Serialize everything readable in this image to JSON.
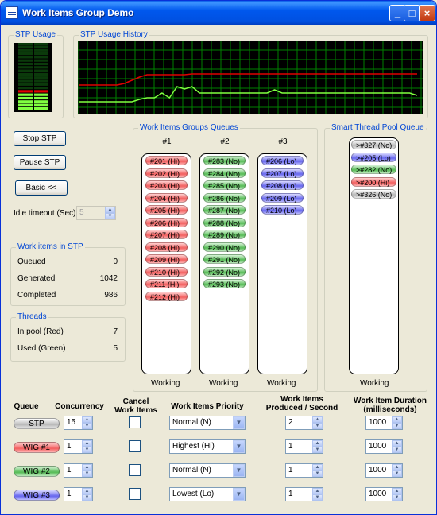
{
  "window": {
    "title": "Work Items Group Demo"
  },
  "colors": {
    "cpu_red": "#e00000",
    "cpu_green": "#80ff40",
    "grid": "#008000",
    "group_title": "#0046d5"
  },
  "stp_usage": {
    "title": "STP Usage",
    "red_segments": 1,
    "green_segments": 5
  },
  "stp_usage_history": {
    "title": "STP Usage History",
    "red_series": [
      30,
      30,
      30,
      30,
      30,
      30,
      32,
      36,
      40,
      43,
      43,
      43,
      43,
      43,
      43,
      44,
      44,
      44,
      44,
      44,
      44,
      44,
      44,
      44,
      44,
      44,
      44,
      44,
      44,
      44,
      44,
      44,
      44,
      44,
      44,
      44,
      44,
      44,
      44,
      44,
      44,
      44,
      44,
      44,
      44,
      44
    ],
    "green_series": [
      9,
      9,
      9,
      9,
      9,
      9,
      9,
      9,
      12,
      14,
      14,
      20,
      14,
      28,
      25,
      28,
      20,
      20,
      20,
      20,
      20,
      20,
      20,
      20,
      20,
      20,
      24,
      20,
      20,
      20,
      20,
      20,
      20,
      20,
      20,
      20,
      20,
      20,
      20,
      20,
      20,
      20,
      20,
      20,
      20,
      17
    ]
  },
  "controls": {
    "stop_stp": "Stop STP",
    "pause_stp": "Pause STP",
    "basic": "Basic <<",
    "idle_timeout_label": "Idle timeout (Sec):",
    "idle_timeout_value": "5"
  },
  "work_items_in_stp": {
    "title": "Work items in STP",
    "rows": [
      {
        "label": "Queued",
        "value": "0"
      },
      {
        "label": "Generated",
        "value": "1042"
      },
      {
        "label": "Completed",
        "value": "986"
      }
    ]
  },
  "threads": {
    "title": "Threads",
    "rows": [
      {
        "label": "In pool (Red)",
        "value": "7"
      },
      {
        "label": "Used (Green)",
        "value": "5"
      }
    ]
  },
  "wig_queues": {
    "title": "Work Items Groups Queues",
    "columns": [
      {
        "header": "#1",
        "status": "Working",
        "items": [
          {
            "text": "#201 (Hi)",
            "cls": "hi"
          },
          {
            "text": "#202 (Hi)",
            "cls": "hi"
          },
          {
            "text": "#203 (Hi)",
            "cls": "hi"
          },
          {
            "text": "#204 (Hi)",
            "cls": "hi"
          },
          {
            "text": "#205 (Hi)",
            "cls": "hi"
          },
          {
            "text": "#206 (Hi)",
            "cls": "hi"
          },
          {
            "text": "#207 (Hi)",
            "cls": "hi"
          },
          {
            "text": "#208 (Hi)",
            "cls": "hi"
          },
          {
            "text": "#209 (Hi)",
            "cls": "hi"
          },
          {
            "text": "#210 (Hi)",
            "cls": "hi"
          },
          {
            "text": "#211 (Hi)",
            "cls": "hi"
          },
          {
            "text": "#212 (Hi)",
            "cls": "hi"
          }
        ]
      },
      {
        "header": "#2",
        "status": "Working",
        "items": [
          {
            "text": "#283 (No)",
            "cls": "no"
          },
          {
            "text": "#284 (No)",
            "cls": "no"
          },
          {
            "text": "#285 (No)",
            "cls": "no"
          },
          {
            "text": "#286 (No)",
            "cls": "no"
          },
          {
            "text": "#287 (No)",
            "cls": "no"
          },
          {
            "text": "#288 (No)",
            "cls": "no"
          },
          {
            "text": "#289 (No)",
            "cls": "no"
          },
          {
            "text": "#290 (No)",
            "cls": "no"
          },
          {
            "text": "#291 (No)",
            "cls": "no"
          },
          {
            "text": "#292 (No)",
            "cls": "no"
          },
          {
            "text": "#293 (No)",
            "cls": "no"
          }
        ]
      },
      {
        "header": "#3",
        "status": "Working",
        "items": [
          {
            "text": "#206 (Lo)",
            "cls": "lo"
          },
          {
            "text": "#207 (Lo)",
            "cls": "lo"
          },
          {
            "text": "#208 (Lo)",
            "cls": "lo"
          },
          {
            "text": "#209 (Lo)",
            "cls": "lo"
          },
          {
            "text": "#210 (Lo)",
            "cls": "lo"
          }
        ]
      }
    ]
  },
  "stp_queue": {
    "title": "Smart Thread Pool Queue",
    "status": "Working",
    "items": [
      {
        "text": ">#327 (No)",
        "cls": "gr"
      },
      {
        "text": ">#205 (Lo)",
        "cls": "lo"
      },
      {
        "text": ">#282 (No)",
        "cls": "no"
      },
      {
        "text": ">#200 (Hi)",
        "cls": "hi"
      },
      {
        "text": ">#326 (No)",
        "cls": "gr"
      }
    ]
  },
  "bottom": {
    "headers": {
      "queue": "Queue",
      "concurrency": "Concurrency",
      "cancel": "Cancel\nWork Items",
      "priority": "Work Items Priority",
      "produced": "Work Items\nProduced / Second",
      "duration": "Work Item Duration\n(milliseconds)"
    },
    "rows": [
      {
        "queue": "STP",
        "cls": "gr",
        "concurrency": "15",
        "priority": "Normal (N)",
        "produced": "2",
        "duration": "1000"
      },
      {
        "queue": "WIG #1",
        "cls": "hi",
        "concurrency": "1",
        "priority": "Highest (Hi)",
        "produced": "1",
        "duration": "1000"
      },
      {
        "queue": "WIG #2",
        "cls": "no",
        "concurrency": "1",
        "priority": "Normal (N)",
        "produced": "1",
        "duration": "1000"
      },
      {
        "queue": "WIG #3",
        "cls": "lo",
        "concurrency": "1",
        "priority": "Lowest (Lo)",
        "produced": "1",
        "duration": "1000"
      }
    ]
  }
}
